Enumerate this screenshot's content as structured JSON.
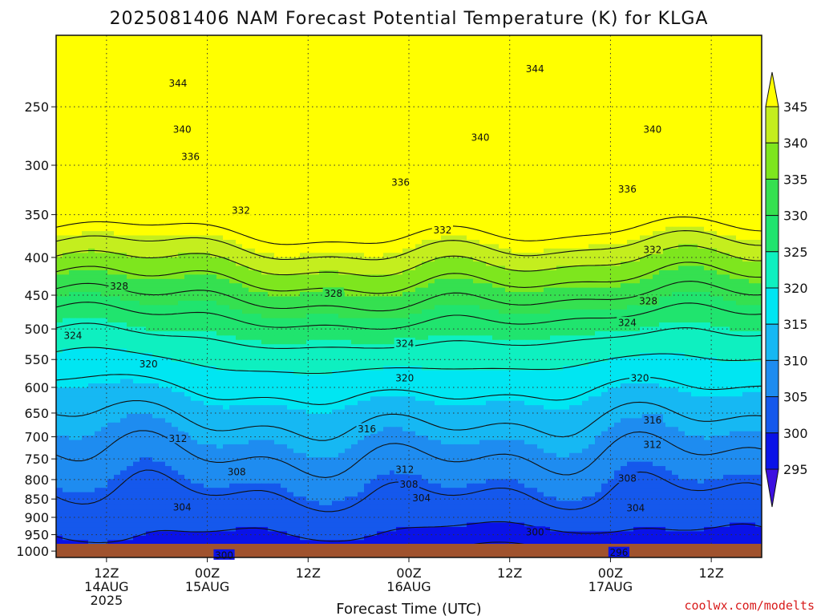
{
  "title": "2025081406 NAM Forecast Potential Temperature (K) for KLGA",
  "xlabel": "Forecast Time (UTC)",
  "credit": "coolwx.com/modelts",
  "chart_data": {
    "type": "heatmap",
    "title": "2025081406 NAM Forecast Potential Temperature (K) for KLGA",
    "xlabel": "Forecast Time (UTC)",
    "ylabel": "",
    "y_scale": "log (pressure, inverted)",
    "y_ticks": [
      250,
      300,
      350,
      400,
      450,
      500,
      550,
      600,
      650,
      700,
      750,
      800,
      850,
      900,
      950,
      1000
    ],
    "x_ticks": [
      {
        "hour": 6,
        "lines": [
          "12Z",
          "14AUG",
          "2025"
        ]
      },
      {
        "hour": 18,
        "lines": [
          "00Z",
          "15AUG"
        ]
      },
      {
        "hour": 30,
        "lines": [
          "12Z"
        ]
      },
      {
        "hour": 42,
        "lines": [
          "00Z",
          "16AUG"
        ]
      },
      {
        "hour": 54,
        "lines": [
          "12Z"
        ]
      },
      {
        "hour": 66,
        "lines": [
          "00Z",
          "17AUG"
        ]
      },
      {
        "hour": 78,
        "lines": [
          "12Z"
        ]
      }
    ],
    "xlim_hours": [
      0,
      84
    ],
    "ylim_hpa": [
      200,
      1020
    ],
    "grid": true,
    "colorbar": {
      "levels": [
        295,
        300,
        305,
        310,
        315,
        320,
        325,
        330,
        335,
        340,
        345
      ],
      "colors": [
        "#3d10e0",
        "#0a12e8",
        "#1558ec",
        "#1e8cf0",
        "#16b8f3",
        "#00e6f2",
        "#0ef0c0",
        "#20e46e",
        "#35e050",
        "#7ee61e",
        "#c4ee1e",
        "#ffff00"
      ]
    },
    "contour_interval": 4,
    "contour_labels": [
      {
        "value": "344",
        "hour": 14.5,
        "p": 232
      },
      {
        "value": "344",
        "hour": 57,
        "p": 222
      },
      {
        "value": "340",
        "hour": 15,
        "p": 268
      },
      {
        "value": "340",
        "hour": 50.5,
        "p": 275
      },
      {
        "value": "340",
        "hour": 71,
        "p": 268
      },
      {
        "value": "336",
        "hour": 16,
        "p": 292
      },
      {
        "value": "336",
        "hour": 41,
        "p": 316
      },
      {
        "value": "336",
        "hour": 68,
        "p": 323
      },
      {
        "value": "332",
        "hour": 22,
        "p": 345
      },
      {
        "value": "332",
        "hour": 46,
        "p": 367
      },
      {
        "value": "332",
        "hour": 71,
        "p": 390
      },
      {
        "value": "328",
        "hour": 7.5,
        "p": 437
      },
      {
        "value": "328",
        "hour": 33,
        "p": 447
      },
      {
        "value": "328",
        "hour": 70.5,
        "p": 458
      },
      {
        "value": "324",
        "hour": 2,
        "p": 510
      },
      {
        "value": "324",
        "hour": 41.5,
        "p": 523
      },
      {
        "value": "324",
        "hour": 68,
        "p": 490
      },
      {
        "value": "320",
        "hour": 11,
        "p": 557
      },
      {
        "value": "320",
        "hour": 41.5,
        "p": 582
      },
      {
        "value": "320",
        "hour": 69.5,
        "p": 582
      },
      {
        "value": "316",
        "hour": 37,
        "p": 683
      },
      {
        "value": "316",
        "hour": 71,
        "p": 664
      },
      {
        "value": "312",
        "hour": 14.5,
        "p": 703
      },
      {
        "value": "312",
        "hour": 41.5,
        "p": 775
      },
      {
        "value": "312",
        "hour": 71,
        "p": 717
      },
      {
        "value": "308",
        "hour": 21.5,
        "p": 780
      },
      {
        "value": "308",
        "hour": 42,
        "p": 811
      },
      {
        "value": "308",
        "hour": 68,
        "p": 796
      },
      {
        "value": "304",
        "hour": 15,
        "p": 871
      },
      {
        "value": "304",
        "hour": 43.5,
        "p": 847
      },
      {
        "value": "304",
        "hour": 69,
        "p": 873
      },
      {
        "value": "300",
        "hour": 57,
        "p": 942
      },
      {
        "value": "300",
        "hour": 20,
        "p": 1012
      },
      {
        "value": "296",
        "hour": 67,
        "p": 1004
      }
    ]
  }
}
